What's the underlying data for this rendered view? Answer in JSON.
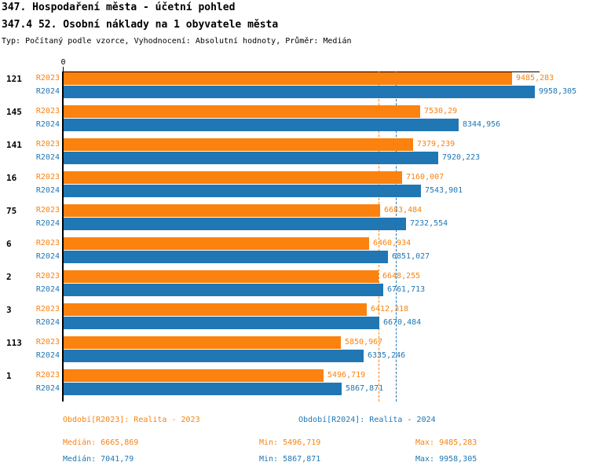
{
  "header": {
    "title": "347. Hospodaření města - účetní pohled",
    "subtitle": "347.4 52. Osobní náklady na 1 obyvatele města",
    "meta": "Typ: Počítaný podle vzorce, Vyhodnocení: Absolutní hodnoty, Průměr: Medián"
  },
  "chart_data": {
    "type": "bar",
    "orientation": "horizontal",
    "categories": [
      "121",
      "145",
      "141",
      "16",
      "75",
      "6",
      "2",
      "3",
      "113",
      "1"
    ],
    "series": [
      {
        "name": "R2023",
        "legend": "Období[R2023]: Realita - 2023",
        "color": "#fb820e",
        "values": [
          9485.283,
          7530.29,
          7379.239,
          7160.007,
          6683.484,
          6460.934,
          6648.255,
          6412.318,
          5850.967,
          5496.719
        ],
        "value_labels": [
          "9485,283",
          "7530,29",
          "7379,239",
          "7160,007",
          "6683,484",
          "6460,934",
          "6648,255",
          "6412,318",
          "5850,967",
          "5496,719"
        ],
        "median": 6665.869
      },
      {
        "name": "R2024",
        "legend": "Období[R2024]: Realita - 2024",
        "color": "#2077b4",
        "values": [
          9958.305,
          8344.956,
          7920.223,
          7543.901,
          7232.554,
          6851.027,
          6761.713,
          6670.484,
          6335.246,
          5867.871
        ],
        "value_labels": [
          "9958,305",
          "8344,956",
          "7920,223",
          "7543,901",
          "7232,554",
          "6851,027",
          "6761,713",
          "6670,484",
          "6335,246",
          "5867,871"
        ],
        "median": 7041.79
      }
    ],
    "x_axis": {
      "zero_label": "0",
      "min": 0,
      "max": 9958.305
    },
    "grid": false,
    "median_lines": true,
    "legend_position": "bottom"
  },
  "legend": {
    "r2023": "Období[R2023]: Realita - 2023",
    "r2024": "Období[R2024]: Realita - 2024"
  },
  "stats": {
    "r2023": {
      "median": "Medián: 6665,869",
      "min": "Min: 5496,719",
      "max": "Max: 9485,283"
    },
    "r2024": {
      "median": "Medián: 7041,79",
      "min": "Min: 5867,871",
      "max": "Max: 9958,305"
    }
  },
  "colors": {
    "r2023": "#fb820e",
    "r2024": "#2077b4",
    "axis": "#000000",
    "background": "#ffffff"
  }
}
